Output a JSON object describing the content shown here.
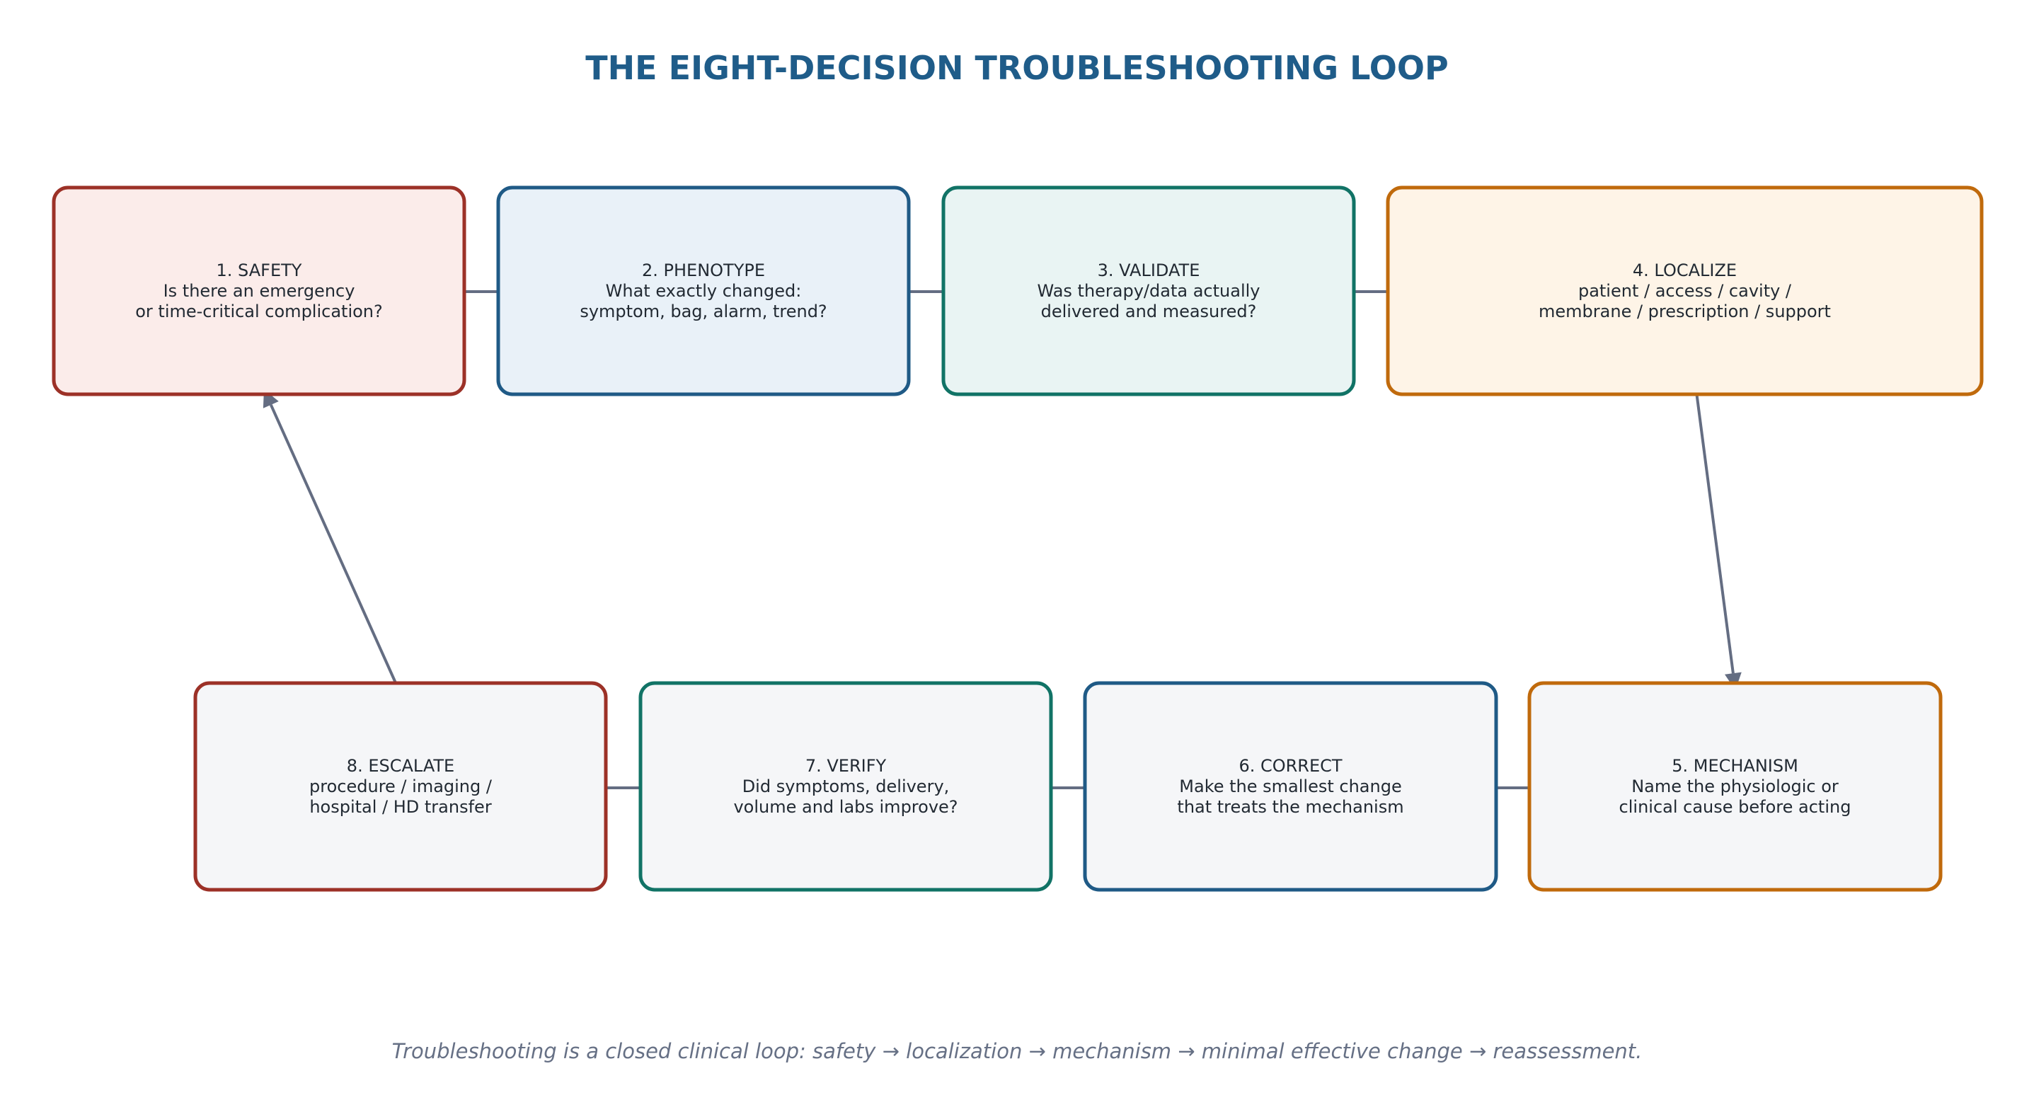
{
  "title": "THE EIGHT-DECISION TROUBLESHOOTING LOOP",
  "caption": "Troubleshooting is a closed clinical loop: safety → localization → mechanism → minimal effective change → reassessment.",
  "nodes": [
    {
      "id": "safety",
      "heading": "1. SAFETY",
      "lines": [
        "Is there an emergency",
        "or time-critical complication?"
      ],
      "border": "#9c3127",
      "fill": "#fbecea"
    },
    {
      "id": "phenotype",
      "heading": "2. PHENOTYPE",
      "lines": [
        "What exactly changed:",
        "symptom, bag, alarm, trend?"
      ],
      "border": "#1f5a86",
      "fill": "#e9f1f8"
    },
    {
      "id": "validate",
      "heading": "3. VALIDATE",
      "lines": [
        "Was therapy/data actually",
        "delivered and measured?"
      ],
      "border": "#117366",
      "fill": "#e9f4f3"
    },
    {
      "id": "localize",
      "heading": "4. LOCALIZE",
      "lines": [
        "patient / access / cavity /",
        "membrane / prescription / support"
      ],
      "border": "#c06a0c",
      "fill": "#fef4e7"
    },
    {
      "id": "mechanism",
      "heading": "5. MECHANISM",
      "lines": [
        "Name the physiologic or",
        "clinical cause before acting"
      ],
      "border": "#c06a0c",
      "fill": "#f5f6f8"
    },
    {
      "id": "correct",
      "heading": "6. CORRECT",
      "lines": [
        "Make the smallest change",
        "that treats the mechanism"
      ],
      "border": "#1f5a86",
      "fill": "#f5f6f8"
    },
    {
      "id": "verify",
      "heading": "7. VERIFY",
      "lines": [
        "Did symptoms, delivery,",
        "volume and labs improve?"
      ],
      "border": "#117366",
      "fill": "#f5f6f8"
    },
    {
      "id": "escalate",
      "heading": "8. ESCALATE",
      "lines": [
        "procedure / imaging /",
        "hospital / HD transfer"
      ],
      "border": "#9c3127",
      "fill": "#f5f6f8"
    }
  ],
  "edges": [
    {
      "from": "safety",
      "to": "phenotype"
    },
    {
      "from": "phenotype",
      "to": "validate"
    },
    {
      "from": "validate",
      "to": "localize"
    },
    {
      "from": "localize",
      "to": "mechanism"
    },
    {
      "from": "mechanism",
      "to": "correct"
    },
    {
      "from": "correct",
      "to": "verify"
    },
    {
      "from": "verify",
      "to": "escalate"
    },
    {
      "from": "escalate",
      "to": "safety"
    }
  ]
}
